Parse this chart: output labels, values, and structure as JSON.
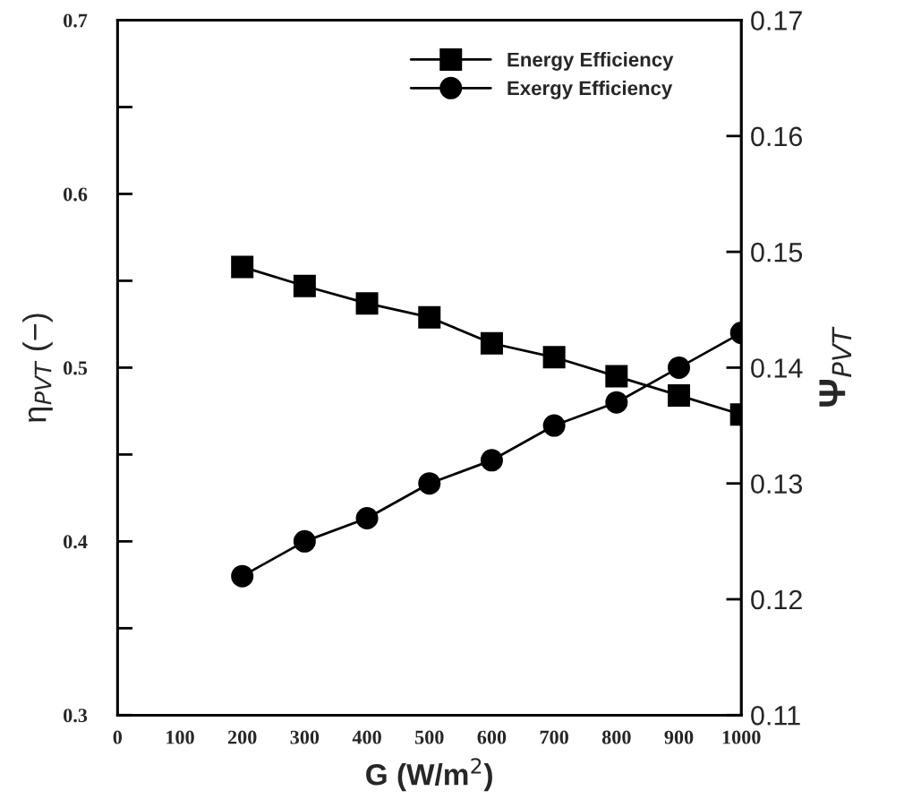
{
  "chart_data": {
    "type": "line",
    "xlabel": "G (W/m$^{2}$)",
    "ylabel": "η$_{PVT}$ (−)",
    "y2label": "Ψ$_{PVT}$",
    "x": [
      200,
      300,
      400,
      500,
      600,
      700,
      800,
      900,
      1000
    ],
    "series": [
      {
        "name": "Energy Efficiency",
        "color": "#000000",
        "marker": "square",
        "values": [
          0.558,
          0.547,
          0.537,
          0.529,
          0.514,
          0.506,
          0.495,
          0.484,
          0.473
        ]
      },
      {
        "name": "Exergy Efficiency",
        "color": "#000000",
        "marker": "circle",
        "axis": "y2",
        "values": [
          0.122,
          0.125,
          0.127,
          0.13,
          0.132,
          0.135,
          0.137,
          0.14,
          0.143
        ]
      }
    ],
    "xlim": [
      0,
      1000
    ],
    "xticks": [
      0,
      100,
      200,
      300,
      400,
      500,
      600,
      700,
      800,
      900,
      1000
    ],
    "ylim": [
      0.3,
      0.7
    ],
    "yticks": [
      0.3,
      {
        "value": 0.35,
        "label": null
      },
      0.4,
      {
        "value": 0.45,
        "label": null
      },
      0.5,
      {
        "value": 0.55,
        "label": null
      },
      0.6,
      {
        "value": 0.65,
        "label": null
      },
      0.7
    ],
    "y2lim": [
      0.11,
      0.17
    ],
    "y2ticks": [
      0.11,
      0.12,
      0.13,
      0.14,
      0.15,
      0.16,
      0.17
    ],
    "grid": false,
    "legend": "top right",
    "line_style": "solid"
  }
}
